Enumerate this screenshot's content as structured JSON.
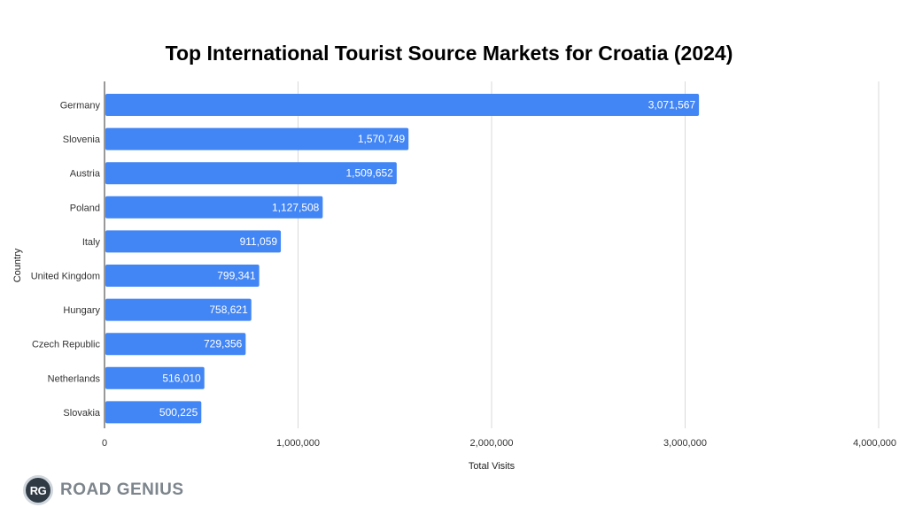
{
  "chart_data": {
    "type": "bar",
    "orientation": "horizontal",
    "title": "Top International Tourist Source Markets for Croatia (2024)",
    "xlabel": "Total Visits",
    "ylabel": "Country",
    "categories": [
      "Germany",
      "Slovenia",
      "Austria",
      "Poland",
      "Italy",
      "United Kingdom",
      "Hungary",
      "Czech Republic",
      "Netherlands",
      "Slovakia"
    ],
    "values": [
      3071567,
      1570749,
      1509652,
      1127508,
      911059,
      799341,
      758621,
      729356,
      516010,
      500225
    ],
    "value_labels": [
      "3,071,567",
      "1,570,749",
      "1,509,652",
      "1,127,508",
      "911,059",
      "799,341",
      "758,621",
      "729,356",
      "516,010",
      "500,225"
    ],
    "xlim": [
      0,
      4000000
    ],
    "xticks": [
      0,
      1000000,
      2000000,
      3000000,
      4000000
    ],
    "xtick_labels": [
      "0",
      "1,000,000",
      "2,000,000",
      "3,000,000",
      "4,000,000"
    ],
    "bar_color": "#4285f4",
    "grid": "vertical"
  },
  "brand": {
    "badge": "RG",
    "name": "ROAD GENIUS"
  }
}
